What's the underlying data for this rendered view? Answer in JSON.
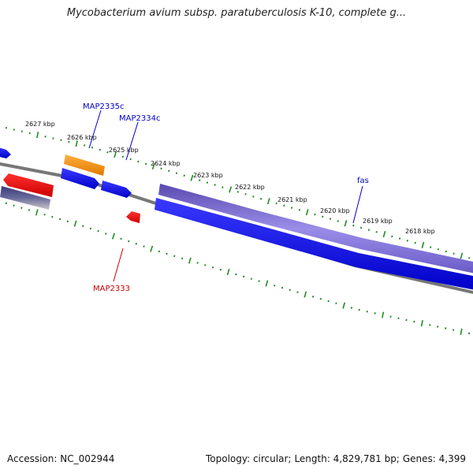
{
  "title": "Mycobacterium avium subsp. paratuberculosis K-10, complete g...",
  "colors": {
    "backbone": "#808080",
    "tick": "#228B22",
    "gene_forward": "#0000ee",
    "gene_reverse": "#ee0000",
    "gene_highlight": "#ff9900",
    "gene_fas": "#7b68d6",
    "gene_grey": "#555599",
    "label_forward": "#0000cc",
    "label_reverse": "#cc0000"
  },
  "tick_labels": [
    {
      "kbp": 2627,
      "label": "2627 kbp"
    },
    {
      "kbp": 2626,
      "label": "2626 kbp"
    },
    {
      "kbp": 2625,
      "label": "2625 kbp"
    },
    {
      "kbp": 2624,
      "label": "2624 kbp"
    },
    {
      "kbp": 2623,
      "label": "2623 kbp"
    },
    {
      "kbp": 2622,
      "label": "2622 kbp"
    },
    {
      "kbp": 2621,
      "label": "2621 kbp"
    },
    {
      "kbp": 2620,
      "label": "2620 kbp"
    },
    {
      "kbp": 2619,
      "label": "2619 kbp"
    },
    {
      "kbp": 2618,
      "label": "2618 kbp"
    }
  ],
  "genes": [
    {
      "name": "MAP2335c",
      "strand": "forward",
      "color": "orange"
    },
    {
      "name": "MAP2334c",
      "strand": "forward",
      "color": "blue"
    },
    {
      "name": "fas",
      "strand": "forward",
      "color": "purple"
    },
    {
      "name": "MAP2333",
      "strand": "reverse",
      "color": "red"
    }
  ],
  "footer": {
    "accession": "Accession: NC_002944",
    "topology": "Topology: circular;",
    "length": "Length: 4,829,781 bp;",
    "genes": "Genes: 4,399"
  }
}
